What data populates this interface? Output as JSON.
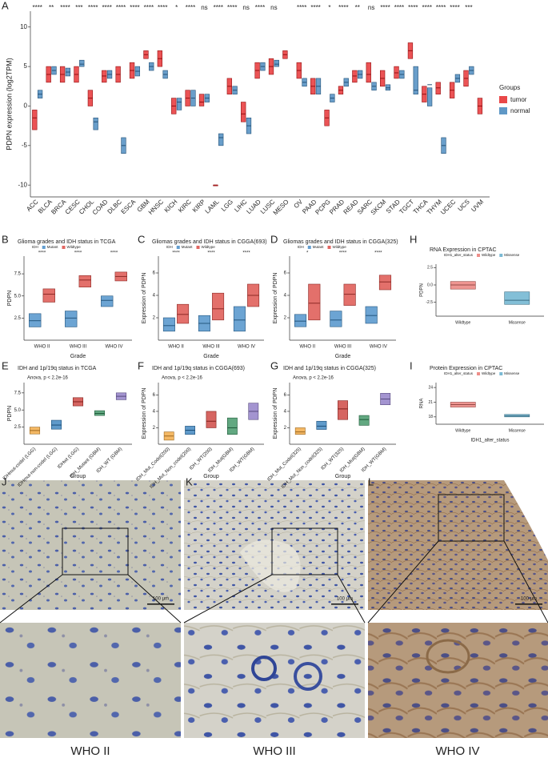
{
  "chart_data": [
    {
      "type": "box",
      "panel": "A",
      "ylabel": "PDPN expression (log2TPM)",
      "legend_position": "right",
      "legend_title": "Groups",
      "categories": [
        "ACC",
        "BLCA",
        "BRCA",
        "CESC",
        "CHOL",
        "COAD",
        "DLBC",
        "ESCA",
        "GBM",
        "HNSC",
        "KICH",
        "KIRC",
        "KIRP",
        "LAML",
        "LGG",
        "LIHC",
        "LUAD",
        "LUSC",
        "MESO",
        "OV",
        "PAAD",
        "PCPG",
        "PRAD",
        "READ",
        "SARC",
        "SKCM",
        "STAD",
        "TGCT",
        "THCA",
        "THYM",
        "UCEC",
        "UCS",
        "UVM"
      ],
      "significance": [
        "****",
        "**",
        "****",
        "***",
        "****",
        "****",
        "****",
        "****",
        "****",
        "****",
        "*",
        "****",
        "ns",
        "****",
        "****",
        "ns",
        "****",
        "ns",
        null,
        "****",
        "****",
        "*",
        "****",
        "**",
        "ns",
        "****",
        "****",
        "****",
        "****",
        "****",
        "****",
        "***",
        null
      ],
      "ylim": [
        -11.5,
        12
      ],
      "yticks": [
        -10,
        -5,
        0,
        5,
        10
      ],
      "series": [
        {
          "name": "tumor",
          "color": "#e41a1c",
          "q1": [
            -3,
            3,
            3,
            3,
            0,
            3,
            3,
            3.5,
            6,
            5,
            -1,
            0,
            0,
            -10,
            1.5,
            -2,
            3.5,
            4,
            6,
            3.5,
            1.5,
            -2.5,
            1.5,
            3,
            3,
            2.5,
            3.5,
            6,
            0.5,
            1.5,
            1,
            2.5,
            -1
          ],
          "median": [
            -1.5,
            4,
            4,
            4,
            1,
            3.8,
            4,
            4.5,
            6.5,
            6,
            0,
            1,
            0.5,
            -10,
            2.5,
            -1,
            4.5,
            5,
            6.5,
            4.5,
            2.5,
            -1.5,
            2,
            3.8,
            4,
            3.5,
            4.2,
            7,
            1.5,
            2.3,
            2,
            3.5,
            0
          ],
          "q3": [
            -0.5,
            5,
            5,
            5,
            2,
            4.5,
            5,
            5.5,
            7,
            7,
            1,
            2,
            1.5,
            -10,
            3.5,
            0.5,
            5.5,
            6,
            7,
            5.5,
            3.5,
            -0.5,
            2.5,
            4.5,
            5.5,
            4.5,
            5,
            8,
            2.5,
            3,
            3,
            4.5,
            1
          ]
        },
        {
          "name": "normal",
          "color": "#377eb8",
          "q1": [
            1,
            4,
            3.8,
            5,
            -3,
            3.5,
            -6,
            3.8,
            4.5,
            3.5,
            -0.5,
            0,
            0.5,
            -5,
            1.5,
            -3.5,
            4.5,
            5,
            null,
            2.5,
            1.5,
            0.5,
            2.5,
            3.5,
            2,
            2,
            3.5,
            1.5,
            2.3,
            -6,
            3,
            4,
            null
          ],
          "median": [
            1.5,
            4.5,
            4.3,
            5.3,
            -2,
            4,
            -5,
            4.4,
            5,
            4,
            0.5,
            1,
            1,
            -4,
            2,
            -2.5,
            5,
            5.3,
            null,
            3,
            2.5,
            1,
            3,
            4,
            2.5,
            2.3,
            4,
            2,
            2.7,
            -5,
            3.5,
            4.5,
            null
          ],
          "q3": [
            2,
            5,
            4.8,
            5.8,
            -1.5,
            4.5,
            -4,
            5,
            5.5,
            4.5,
            1,
            2,
            1.5,
            -3.5,
            2.5,
            -1.5,
            5.5,
            5.8,
            null,
            3.5,
            3.5,
            1.5,
            3.5,
            4.5,
            3,
            2.7,
            4.5,
            5,
            null,
            -4,
            4,
            5,
            null
          ]
        }
      ]
    },
    {
      "type": "box",
      "panel": "B",
      "title": "Glioma grades and IDH status in TCGA",
      "legend_position": "top",
      "legend_title": "IDH",
      "xlabel": "Grade",
      "ylabel": "PDPN",
      "categories": [
        "WHO II",
        "WHO III",
        "WHO IV"
      ],
      "significance": [
        "****",
        "****",
        "****"
      ],
      "ylim": [
        0,
        9.5
      ],
      "yticks": [
        2.5,
        {
          "value": 5,
          "label": "5.0"
        },
        7.5
      ],
      "series": [
        {
          "name": "Mutant",
          "color": "#3b86c4",
          "q1": [
            1.5,
            1.5,
            3.8
          ],
          "median": [
            2.2,
            2.5,
            4.5
          ],
          "q3": [
            3,
            3.3,
            5
          ]
        },
        {
          "name": "Wildtype",
          "color": "#d9403a",
          "q1": [
            4.3,
            6,
            6.7
          ],
          "median": [
            5.2,
            6.8,
            7.2
          ],
          "q3": [
            5.8,
            7.3,
            7.7
          ]
        }
      ]
    },
    {
      "type": "box",
      "panel": "C",
      "title": "Gliomas grades and IDH status in CGGA(693)",
      "legend_position": "top",
      "legend_title": "IDH",
      "xlabel": "Grade",
      "ylabel": "Expression of PDPN",
      "categories": [
        "WHO II",
        "WHO III",
        "WHO IV"
      ],
      "significance": [
        "****",
        "****",
        "****"
      ],
      "ylim": [
        0,
        7.5
      ],
      "yticks": [
        2,
        4,
        6
      ],
      "series": [
        {
          "name": "Mutant",
          "color": "#3b86c4",
          "q1": [
            0.8,
            0.8,
            0.8
          ],
          "median": [
            1.3,
            1.5,
            1.8
          ],
          "q3": [
            2,
            2.2,
            3
          ]
        },
        {
          "name": "Wildtype",
          "color": "#d9403a",
          "q1": [
            1.5,
            1.8,
            3
          ],
          "median": [
            2.3,
            2.8,
            4
          ],
          "q3": [
            3.2,
            4.2,
            5
          ]
        }
      ]
    },
    {
      "type": "box",
      "panel": "D",
      "title": "Gliomas grades and IDH status in CGGA(325)",
      "legend_position": "top",
      "legend_title": "IDH",
      "xlabel": "Grade",
      "ylabel": "Expression of PDPN",
      "categories": [
        "WHO II",
        "WHO III",
        "WHO IV"
      ],
      "significance": [
        "*",
        "****",
        "****"
      ],
      "ylim": [
        0,
        7.5
      ],
      "yticks": [
        2,
        4,
        6
      ],
      "series": [
        {
          "name": "Mutant",
          "color": "#3b86c4",
          "q1": [
            1.2,
            1.2,
            1.5
          ],
          "median": [
            1.7,
            1.8,
            2.2
          ],
          "q3": [
            2.3,
            2.6,
            3
          ]
        },
        {
          "name": "Wildtype",
          "color": "#d9403a",
          "q1": [
            1.8,
            3.1,
            4.5
          ],
          "median": [
            3.3,
            4.1,
            5.2
          ],
          "q3": [
            5,
            5,
            5.8
          ]
        }
      ]
    },
    {
      "type": "box",
      "panel": "H",
      "title": "RNA Expression in CPTAC",
      "legend_position": "top",
      "legend": {
        "title": "IDH1_alter_status",
        "items": [
          "Wildtype",
          "Missense"
        ]
      },
      "ylabel": "PDPN",
      "categories": [
        "Wildtype",
        "Missense"
      ],
      "colors": [
        "#e8726c",
        "#5aa9c9"
      ],
      "ylim": [
        -4.5,
        3
      ],
      "yticks": [
        -2.5,
        {
          "value": 0,
          "label": "0.0"
        },
        2.5
      ],
      "q1": [
        -0.6,
        -2.8
      ],
      "median": [
        0,
        -2.2
      ],
      "q3": [
        0.5,
        -1
      ]
    },
    {
      "type": "box",
      "panel": "E",
      "title": "IDH and 1p/19q status in TCGA",
      "subtitle": "Anova, p < 2.2e-16",
      "xlabel": "Group",
      "ylabel": "PDPN",
      "categories": [
        "IDHmut-codel (LGG)",
        "IDHmut-non-codel (LGG)",
        "IDHwt (LGG)",
        "IDH_Mutant (GBM)",
        "IDH_WT (GBM)"
      ],
      "colors": [
        "#f0a030",
        "#2a78b8",
        "#c8322c",
        "#2e8b57",
        "#8470c0"
      ],
      "ylim": [
        0,
        9
      ],
      "yticks": [
        2.5,
        {
          "value": 5,
          "label": "5.0"
        },
        7.5
      ],
      "q1": [
        1.5,
        2.2,
        5.6,
        4.2,
        6.5
      ],
      "median": [
        2,
        2.8,
        6.2,
        4.5,
        7
      ],
      "q3": [
        2.5,
        3.5,
        6.8,
        4.9,
        7.5
      ]
    },
    {
      "type": "box",
      "panel": "F",
      "title": "IDH and 1p/19q status in CGGA(693)",
      "subtitle": "Anova, p < 2.2e-16",
      "xlabel": "Group",
      "ylabel": "Expression of PDPN",
      "categories": [
        "IDH_Mut_Codel(200)",
        "IDH_Mut_Non_codel(200)",
        "IDH_WT(200)",
        "IDH_Mut(GBM)",
        "IDH_WT(GBM)"
      ],
      "colors": [
        "#f0a030",
        "#2a78b8",
        "#c8322c",
        "#2e8b57",
        "#8470c0"
      ],
      "ylim": [
        0,
        7.5
      ],
      "yticks": [
        2,
        4,
        6
      ],
      "q1": [
        0.5,
        1.2,
        2,
        1.2,
        3
      ],
      "median": [
        1,
        1.7,
        2.8,
        2,
        4
      ],
      "q3": [
        1.5,
        2.2,
        4,
        3.2,
        5
      ]
    },
    {
      "type": "box",
      "panel": "G",
      "title": "IDH and 1p/19q status in CGGA(325)",
      "subtitle": "Anova, p < 2.2e-16",
      "xlabel": "Group",
      "ylabel": "Expression of PDPN",
      "categories": [
        "IDH_Mut_Codel(325)",
        "IDH_Mut_Non_codel(325)",
        "IDH_WT(325)",
        "IDH_Mut(GBM)",
        "IDH_WT(GBM)"
      ],
      "colors": [
        "#f0a030",
        "#2a78b8",
        "#c8322c",
        "#2e8b57",
        "#8470c0"
      ],
      "ylim": [
        0,
        7.5
      ],
      "yticks": [
        2,
        4,
        6
      ],
      "q1": [
        1.2,
        1.8,
        3,
        2.3,
        4.8
      ],
      "median": [
        1.5,
        2.2,
        4.3,
        3,
        5.5
      ],
      "q3": [
        2,
        2.8,
        5.3,
        3.5,
        6.2
      ]
    },
    {
      "type": "box",
      "panel": "I",
      "title": "Protein Expression in CPTAC",
      "legend_position": "top",
      "legend": {
        "title": "IDH1_alter_status",
        "items": [
          "Wildtype",
          "Missense"
        ]
      },
      "xlabel": "IDH1_alter_status",
      "ylabel": "RNA",
      "categories": [
        "Wildtype",
        "Missense"
      ],
      "colors": [
        "#e8726c",
        "#5aa9c9"
      ],
      "ylim": [
        16.5,
        25
      ],
      "yticks": [
        18,
        21,
        24
      ],
      "q1": [
        20,
        18
      ],
      "median": [
        20.5,
        18.2
      ],
      "q3": [
        21,
        18.5
      ]
    }
  ],
  "images": [
    {
      "letter": "J",
      "scale": "100 μm",
      "label": "WHO II"
    },
    {
      "letter": "K",
      "scale": "100 μm",
      "label": "WHO III"
    },
    {
      "letter": "L",
      "scale": "100 μm",
      "label": "WHO IV"
    }
  ]
}
